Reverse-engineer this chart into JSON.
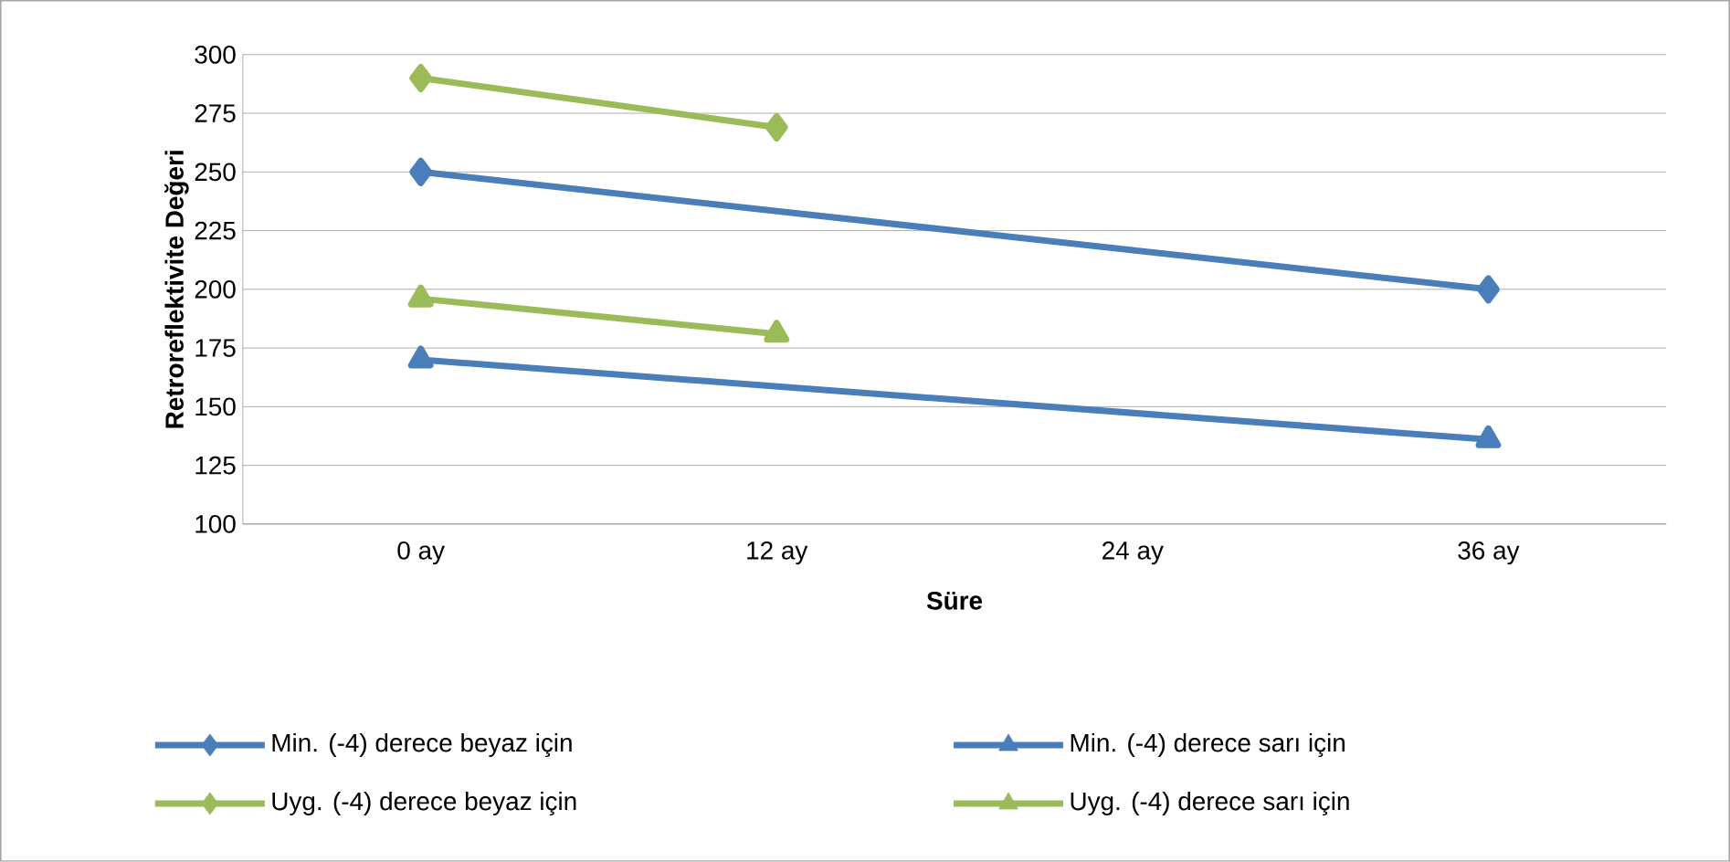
{
  "chart_data": {
    "type": "line",
    "xlabel": "Süre",
    "ylabel": "Retroreflektivite Değeri",
    "categories": [
      "0 ay",
      "12 ay",
      "24 ay",
      "36 ay"
    ],
    "series": [
      {
        "name": "Min. (-4) derece beyaz için",
        "color": "#4a7ebb",
        "marker": "diamond",
        "values": [
          250,
          null,
          null,
          200
        ]
      },
      {
        "name": "Min. (-4) derece sarı için",
        "color": "#4a7ebb",
        "marker": "triangle",
        "values": [
          170,
          null,
          null,
          136
        ]
      },
      {
        "name": "Uyg. (-4) derece beyaz için",
        "color": "#9bbb59",
        "marker": "diamond",
        "values": [
          290,
          269,
          null,
          null
        ]
      },
      {
        "name": "Uyg. (-4) derece sarı için",
        "color": "#9bbb59",
        "marker": "triangle",
        "values": [
          196,
          181,
          null,
          null
        ]
      }
    ],
    "ylim": [
      100,
      300
    ],
    "yticks": [
      100,
      125,
      150,
      175,
      200,
      225,
      250,
      275,
      300
    ],
    "grid": "y",
    "legend": "bottom",
    "line_style": "solid"
  }
}
